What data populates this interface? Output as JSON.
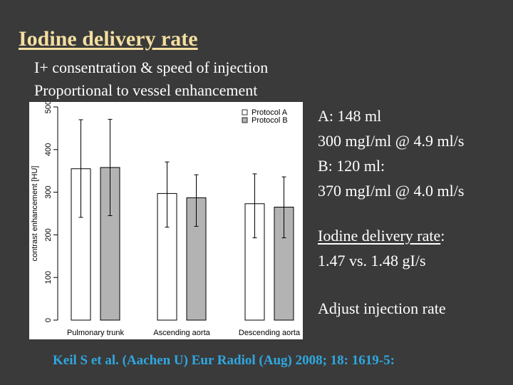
{
  "slide": {
    "title": "Iodine delivery rate",
    "bullets": [
      "I+ consentration & speed of injection",
      "Proportional to vessel enhancement"
    ],
    "right_text": {
      "a_dose": "A: 148 ml",
      "a_rate": "300 mgI/ml @ 4.9 ml/s",
      "b_dose": "B: 120 ml:",
      "b_rate": "370 mgI/ml @ 4.0 ml/s",
      "idr_label": "Iodine delivery rate",
      "idr_colon": ":",
      "idr_values": "1.47 vs. 1.48 gI/s",
      "conclusion": "Adjust injection rate"
    },
    "citation": "Keil S et al. (Aachen U) Eur Radiol (Aug) 2008; 18: 1619-5:",
    "colors": {
      "background": "#3a3a3a",
      "title": "#f4dfa0",
      "citation": "#2fa7e0",
      "protocol_a": "#ffffff",
      "protocol_b": "#b3b3b3"
    }
  },
  "chart_data": {
    "type": "bar",
    "ylabel": "contrast enhancement [HU]",
    "ylim": [
      0,
      500
    ],
    "yticks": [
      0,
      100,
      200,
      300,
      400,
      500
    ],
    "categories": [
      "Pulmonary trunk",
      "Ascending aorta",
      "Descending aorta"
    ],
    "series": [
      {
        "name": "Protocol A",
        "color": "#ffffff",
        "values": [
          355,
          297,
          273
        ],
        "err_low": [
          241,
          218,
          193
        ],
        "err_high": [
          470,
          371,
          343
        ]
      },
      {
        "name": "Protocol B",
        "color": "#b3b3b3",
        "values": [
          358,
          287,
          265
        ],
        "err_low": [
          245,
          220,
          193
        ],
        "err_high": [
          471,
          341,
          336
        ]
      }
    ],
    "legend_position": "top-right",
    "grid": false
  }
}
